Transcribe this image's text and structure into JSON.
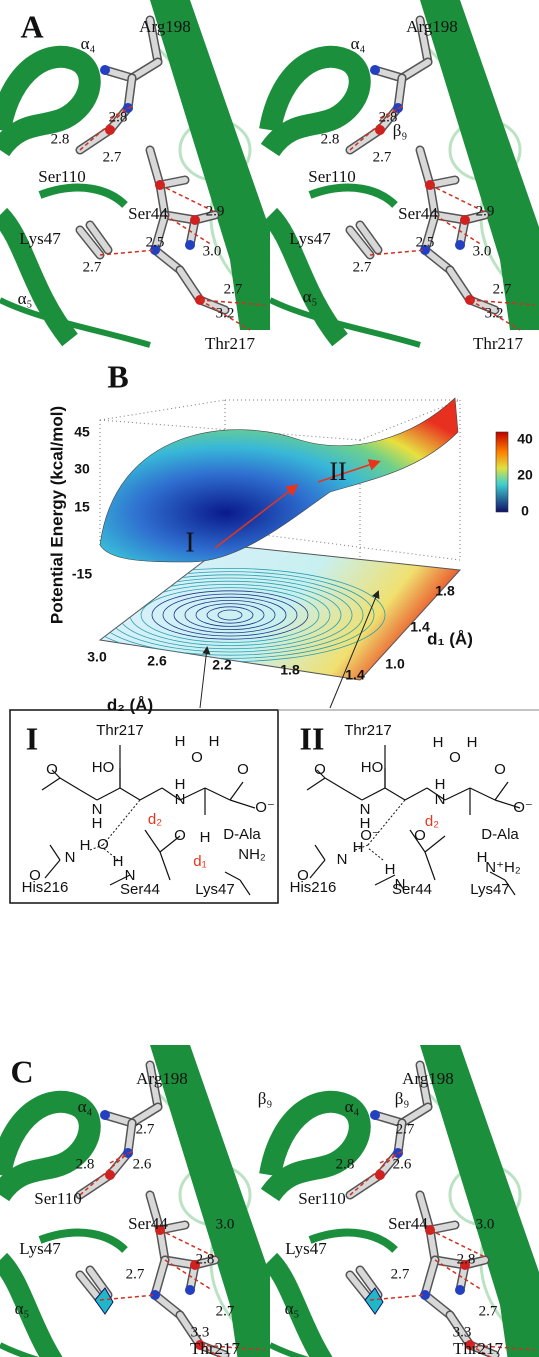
{
  "panel_a": {
    "label": "A",
    "left": [
      "α₄",
      "Arg198",
      "2.8",
      "2.8",
      "2.7",
      "Ser110",
      "2.9",
      "Ser44",
      "Lys47",
      "2.5",
      "3.0",
      "2.7",
      "α₅",
      "2.7",
      "3.2",
      "Thr217"
    ],
    "right": [
      "α₄",
      "Arg198",
      "β₉",
      "2.8",
      "2.8",
      "2.7",
      "Ser110",
      "2.9",
      "Ser44",
      "Lys47",
      "2.5",
      "3.0",
      "2.7",
      "α₅",
      "2.7",
      "3.2",
      "Thr217"
    ]
  },
  "panel_b": {
    "label": "B",
    "z_axis_label": "Potential Energy (kcal/mol)",
    "z_ticks": [
      "45",
      "30",
      "15",
      "-15"
    ],
    "colorbar_ticks": [
      "40",
      "20",
      "0"
    ],
    "d2_label": "d₂ (Å)",
    "d2_ticks": [
      "3.0",
      "2.6",
      "2.2",
      "1.8",
      "1.4"
    ],
    "d1_label": "d₁ (Å)",
    "d1_ticks": [
      "1.0",
      "1.4",
      "1.8"
    ],
    "states": [
      "I",
      "II"
    ]
  },
  "scheme_1": {
    "atoms": [
      "I",
      "Thr217",
      "O",
      "HO",
      "H",
      "O",
      "H",
      "H",
      "N",
      "N",
      "H",
      "O",
      "O⁻",
      "D-Ala",
      "O",
      "O",
      "H",
      "N",
      "H",
      "N",
      "O",
      "H",
      "d₂",
      "d₁",
      "NH₂",
      "His216",
      "Ser44",
      "Lys47"
    ]
  },
  "scheme_2": {
    "atoms": [
      "II",
      "Thr217",
      "O",
      "HO",
      "H",
      "O",
      "H",
      "H",
      "N",
      "N",
      "H",
      "O",
      "O⁻",
      "D-Ala",
      "O⁻",
      "O",
      "H",
      "N",
      "H",
      "N",
      "O",
      "d₂",
      "H",
      "N⁺H₂",
      "His216",
      "Ser44",
      "Lys47"
    ]
  },
  "panel_c": {
    "label": "C",
    "left": [
      "α₄",
      "Arg198",
      "β₉",
      "2.7",
      "2.8",
      "2.6",
      "Ser110",
      "Ser44",
      "3.0",
      "Lys47",
      "2.8",
      "2.7",
      "α₅",
      "2.7",
      "3.3",
      "Thr217"
    ],
    "right": [
      "α₄",
      "Arg198",
      "β₉",
      "2.7",
      "2.8",
      "2.6",
      "Ser110",
      "Ser44",
      "3.0",
      "Lys47",
      "2.8",
      "2.7",
      "α₅",
      "2.7",
      "3.3",
      "Thr217"
    ]
  }
}
